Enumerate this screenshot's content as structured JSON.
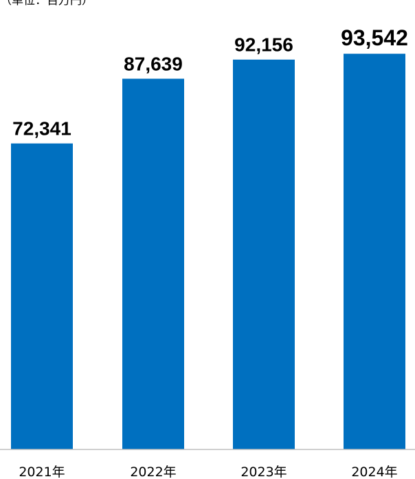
{
  "chart_data": {
    "type": "bar",
    "title": "",
    "unit_label": "（単位：百万円）",
    "categories": [
      "2021年",
      "2022年",
      "2023年",
      "2024年"
    ],
    "values": [
      72341,
      87639,
      92156,
      93542
    ],
    "value_labels": [
      "72,341",
      "87,639",
      "92,156",
      "93,542"
    ],
    "xlabel": "",
    "ylabel": "",
    "ylim": [
      0,
      103000
    ],
    "grid": false,
    "legend": "none",
    "colors": {
      "bar": "#0070C0",
      "axis": "#BFBFBF",
      "text": "#000000"
    }
  }
}
